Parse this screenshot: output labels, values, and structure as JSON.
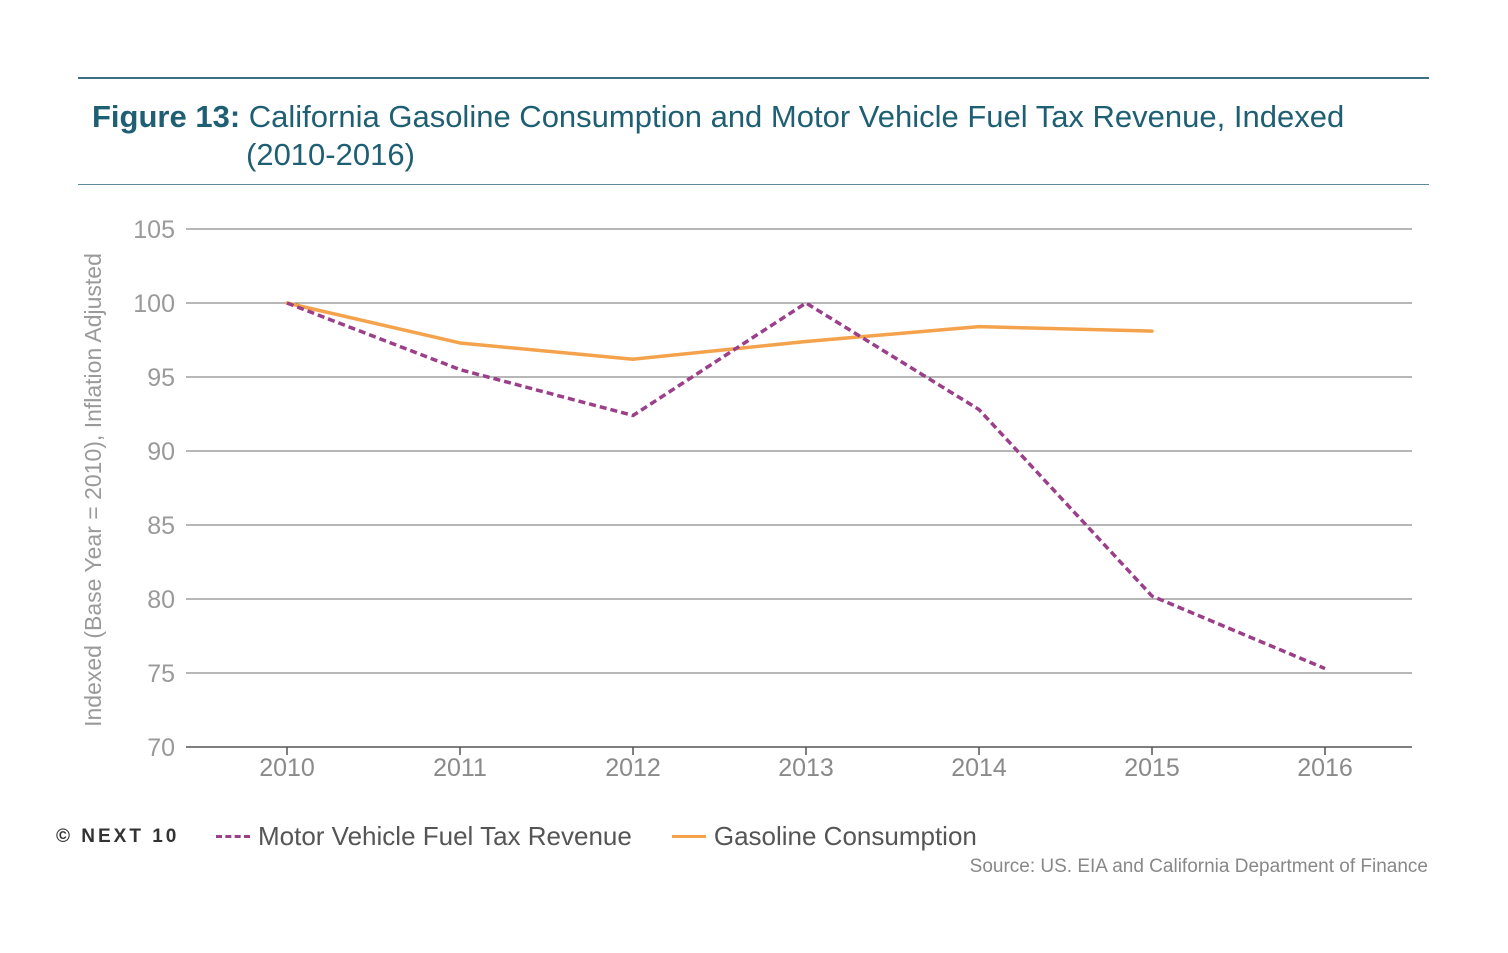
{
  "header": {
    "figure_label": "Figure 13:",
    "title_line1": "California Gasoline Consumption and Motor Vehicle Fuel Tax Revenue, Indexed",
    "title_line2": "(2010-2016)"
  },
  "chart_data": {
    "type": "line",
    "title": "California Gasoline Consumption and Motor Vehicle Fuel Tax Revenue, Indexed (2010-2016)",
    "xlabel": "",
    "ylabel": "Indexed (Base Year = 2010), Inflation Adjusted",
    "x": [
      "2010",
      "2011",
      "2012",
      "2013",
      "2014",
      "2015",
      "2016"
    ],
    "ylim": [
      70,
      105
    ],
    "yticks": [
      70,
      75,
      80,
      85,
      90,
      95,
      100,
      105
    ],
    "grid": true,
    "legend_position": "bottom",
    "series": [
      {
        "name": "Motor Vehicle Fuel Tax Revenue",
        "style": "dashed",
        "color": "#9b3f8a",
        "values": [
          100,
          95.5,
          92.4,
          100,
          92.8,
          80.2,
          75.3
        ]
      },
      {
        "name": "Gasoline Consumption",
        "style": "solid",
        "color": "#f4a24c",
        "values": [
          100,
          97.3,
          96.2,
          97.4,
          98.4,
          98.1,
          null
        ]
      }
    ]
  },
  "footer": {
    "copyright": "© NEXT 10",
    "source": "Source: US. EIA and California Department of Finance"
  }
}
